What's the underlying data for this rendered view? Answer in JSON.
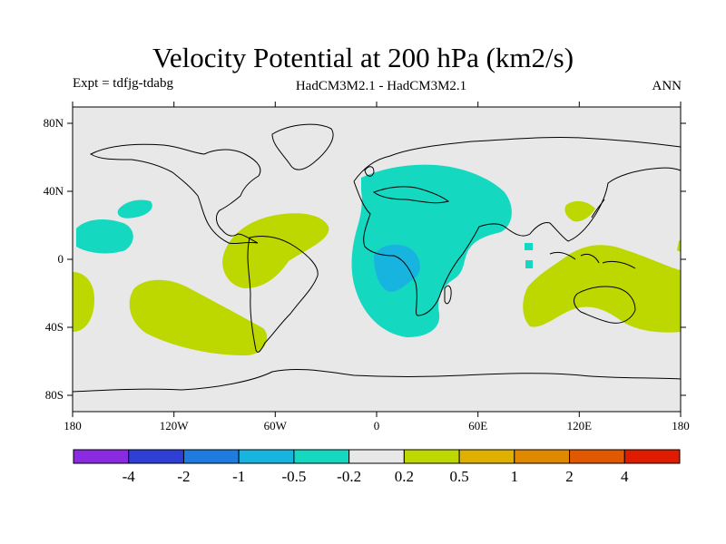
{
  "header": {
    "title": "Velocity Potential at 200 hPa (km2/s)",
    "expt": "Expt = tdfjg-tdabg",
    "models": "HadCM3M2.1 - HadCM3M2.1",
    "season": "ANN"
  },
  "map": {
    "lat_labels": [
      "80N",
      "40N",
      "0",
      "40S",
      "80S"
    ],
    "lon_labels": [
      "180",
      "120W",
      "60W",
      "0",
      "60E",
      "120E",
      "180"
    ],
    "background_color": "#e8e8e8",
    "land_outline_color": "#000000"
  },
  "colorbar": {
    "colors": [
      "#8a2be2",
      "#2d3fd4",
      "#1e7be0",
      "#18b4e0",
      "#14d8c0",
      "#e8e8e8",
      "#bcd800",
      "#e0b000",
      "#e08800",
      "#e05800",
      "#e01c00"
    ],
    "labels": [
      "-4",
      "-2",
      "-1",
      "-0.5",
      "-0.2",
      "0.2",
      "0.5",
      "1",
      "2",
      "4"
    ]
  }
}
